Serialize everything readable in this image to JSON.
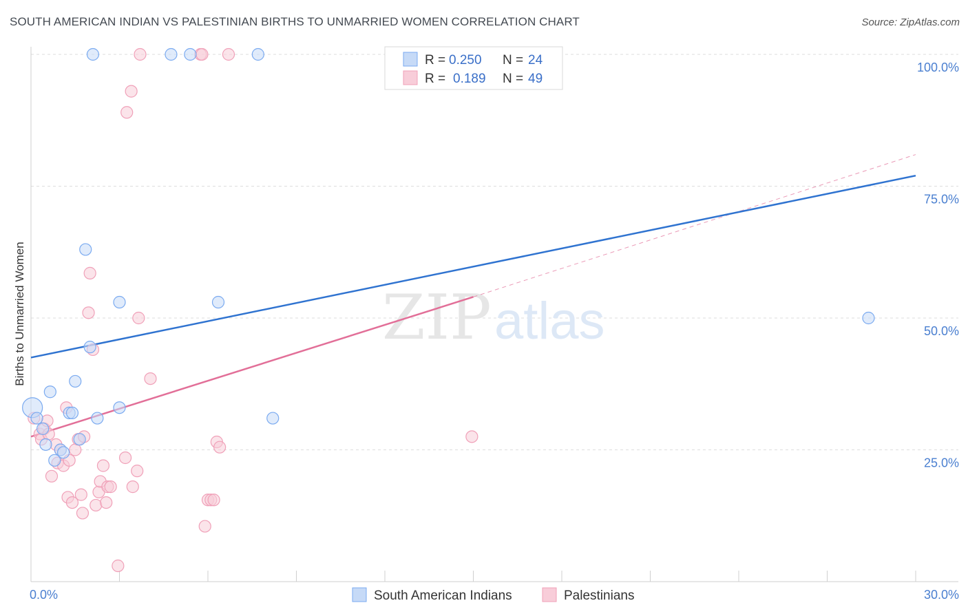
{
  "chart_data": {
    "type": "scatter",
    "title": "SOUTH AMERICAN INDIAN VS PALESTINIAN BIRTHS TO UNMARRIED WOMEN CORRELATION CHART",
    "source": "Source: ZipAtlas.com",
    "ylabel": "Births to Unmarried Women",
    "xlabel": "",
    "xlim": [
      0,
      30
    ],
    "ylim": [
      0,
      100
    ],
    "x_tick_labels": [
      "0.0%",
      "30.0%"
    ],
    "y_ticks": [
      25,
      50,
      75,
      100
    ],
    "y_tick_labels": [
      "25.0%",
      "50.0%",
      "75.0%",
      "100.0%"
    ],
    "watermark": {
      "zip": "ZIP",
      "atlas": "atlas"
    },
    "legend": {
      "rows": [
        {
          "r_label": "R =",
          "r_value": "0.250",
          "n_label": "N =",
          "n_value": "24"
        },
        {
          "r_label": "R =",
          "r_value": "0.189",
          "n_label": "N =",
          "n_value": "49"
        }
      ]
    },
    "series": [
      {
        "name": "South American Indians",
        "color": "#7aaaf0",
        "fill": "#c6daf7",
        "trend_color": "#2f73d0",
        "trend": {
          "x0": 0,
          "y0": 42.5,
          "x1": 30,
          "y1": 77
        },
        "points": [
          [
            0.05,
            33,
            16
          ],
          [
            0.2,
            31,
            10
          ],
          [
            0.4,
            29,
            10
          ],
          [
            0.5,
            26,
            10
          ],
          [
            0.65,
            36,
            10
          ],
          [
            0.8,
            23,
            10
          ],
          [
            1.0,
            25,
            10
          ],
          [
            1.1,
            24.5,
            10
          ],
          [
            1.3,
            32,
            10
          ],
          [
            1.4,
            32,
            10
          ],
          [
            1.5,
            38,
            10
          ],
          [
            1.65,
            27,
            10
          ],
          [
            1.85,
            63,
            10
          ],
          [
            2.0,
            44.5,
            10
          ],
          [
            2.25,
            31,
            10
          ],
          [
            2.1,
            100,
            10
          ],
          [
            3.0,
            53,
            10
          ],
          [
            3.0,
            33,
            10
          ],
          [
            4.75,
            100,
            10
          ],
          [
            5.4,
            100,
            10
          ],
          [
            6.35,
            53,
            10
          ],
          [
            7.7,
            100,
            10
          ],
          [
            8.2,
            31,
            10
          ],
          [
            28.4,
            50,
            10
          ]
        ]
      },
      {
        "name": "Palestinians",
        "color": "#f0a0b8",
        "fill": "#f8cdd9",
        "trend_color": "#e26f98",
        "trend": {
          "x0": 0,
          "y0": 27.5,
          "x1": 15,
          "y1": 54
        },
        "trend_dashed": {
          "x0": 15,
          "y0": 54,
          "x1": 30,
          "y1": 81
        },
        "points": [
          [
            0.1,
            31,
            10
          ],
          [
            0.3,
            28,
            10
          ],
          [
            0.35,
            27,
            10
          ],
          [
            0.45,
            29,
            10
          ],
          [
            0.55,
            30.5,
            10
          ],
          [
            0.6,
            28,
            10
          ],
          [
            0.7,
            20,
            10
          ],
          [
            0.85,
            26,
            10
          ],
          [
            0.9,
            22.5,
            10
          ],
          [
            1.0,
            25,
            10
          ],
          [
            1.1,
            22,
            10
          ],
          [
            1.2,
            33,
            10
          ],
          [
            1.25,
            16,
            10
          ],
          [
            1.3,
            23,
            10
          ],
          [
            1.4,
            15,
            10
          ],
          [
            1.5,
            25,
            10
          ],
          [
            1.6,
            27,
            10
          ],
          [
            1.7,
            16.5,
            10
          ],
          [
            1.75,
            13,
            10
          ],
          [
            1.8,
            27.5,
            10
          ],
          [
            1.95,
            51,
            10
          ],
          [
            2.0,
            58.5,
            10
          ],
          [
            2.1,
            44,
            10
          ],
          [
            2.2,
            14.5,
            10
          ],
          [
            2.3,
            17,
            10
          ],
          [
            2.35,
            19,
            10
          ],
          [
            2.45,
            22,
            10
          ],
          [
            2.55,
            15,
            10
          ],
          [
            2.6,
            18,
            10
          ],
          [
            2.7,
            18,
            10
          ],
          [
            2.95,
            3,
            10
          ],
          [
            3.2,
            23.5,
            10
          ],
          [
            3.25,
            89,
            10
          ],
          [
            3.4,
            93,
            10
          ],
          [
            3.45,
            18,
            10
          ],
          [
            3.6,
            21,
            10
          ],
          [
            3.65,
            50,
            10
          ],
          [
            3.7,
            100,
            10
          ],
          [
            4.05,
            38.5,
            10
          ],
          [
            5.75,
            100,
            10
          ],
          [
            5.8,
            100,
            10
          ],
          [
            5.9,
            10.5,
            10
          ],
          [
            6.0,
            15.5,
            10
          ],
          [
            6.1,
            15.5,
            10
          ],
          [
            6.2,
            15.5,
            10
          ],
          [
            6.3,
            26.5,
            10
          ],
          [
            6.4,
            25.5,
            10
          ],
          [
            6.7,
            100,
            10
          ],
          [
            14.95,
            27.5,
            10
          ]
        ]
      }
    ]
  }
}
